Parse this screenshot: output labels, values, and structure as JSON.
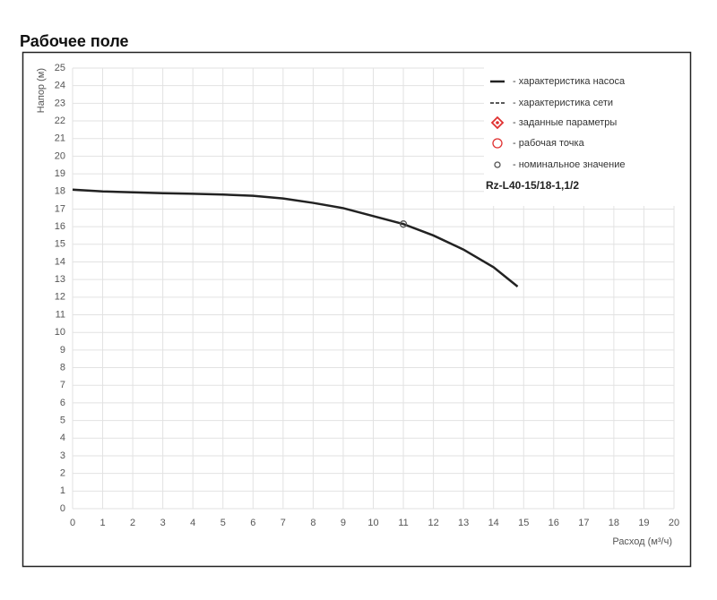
{
  "page_title": "Рабочее поле",
  "chart_data": {
    "type": "line",
    "ylabel": "Напор (м)",
    "xlabel": "Расход (м³/ч)",
    "xlim": [
      0,
      20
    ],
    "ylim": [
      0,
      25
    ],
    "xticks": [
      0,
      1,
      2,
      3,
      4,
      5,
      6,
      7,
      8,
      9,
      10,
      11,
      12,
      13,
      14,
      15,
      16,
      17,
      18,
      19,
      20
    ],
    "yticks": [
      0,
      1,
      2,
      3,
      4,
      5,
      6,
      7,
      8,
      9,
      10,
      11,
      12,
      13,
      14,
      15,
      16,
      17,
      18,
      19,
      20,
      21,
      22,
      23,
      24,
      25
    ],
    "grid": true,
    "series": [
      {
        "color": "#222222",
        "x": [
          0,
          1,
          2,
          3,
          4,
          5,
          6,
          7,
          8,
          9,
          10,
          11,
          12,
          13,
          14,
          14.8
        ],
        "values": [
          18.1,
          18.0,
          17.95,
          17.9,
          17.87,
          17.82,
          17.75,
          17.6,
          17.35,
          17.05,
          16.6,
          16.15,
          15.5,
          14.7,
          13.7,
          12.6
        ]
      }
    ],
    "nominal_point": {
      "x": 11,
      "y": 16.15,
      "color": "#555555"
    },
    "legend": [
      {
        "label": "- характеристика насоса",
        "marker": "solid"
      },
      {
        "label": "- характеристика сети",
        "marker": "dashed"
      },
      {
        "label": "- заданные параметры",
        "marker": "diamond"
      },
      {
        "label": "- рабочая точка",
        "marker": "ring"
      },
      {
        "label": "- номинальное значение",
        "marker": "dot"
      }
    ],
    "model": "Rz-L40-15/18-1,1/2"
  }
}
